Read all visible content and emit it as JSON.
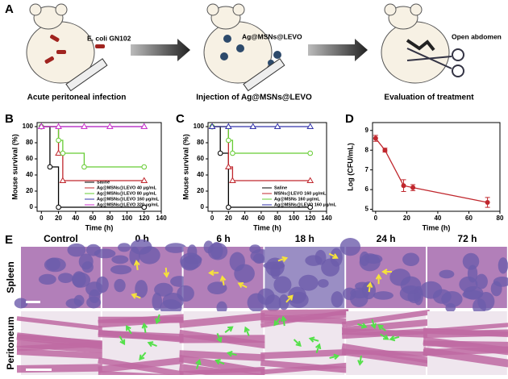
{
  "panel_labels": [
    "A",
    "B",
    "C",
    "D",
    "E"
  ],
  "panel_a": {
    "steps": [
      {
        "label": "E. coli GN102",
        "caption": "Acute peritoneal infection"
      },
      {
        "label": "Ag@MSNs@LEVO",
        "caption": "Injection of Ag@MSNs@LEVO"
      },
      {
        "label": "Open abdomen",
        "caption": "Evaluation of treatment"
      }
    ]
  },
  "chart_data": [
    {
      "type": "step",
      "y_label": "Mouse survival (%)",
      "x_label": "Time (h)",
      "xlim": [
        -5,
        140
      ],
      "ylim": [
        -5,
        105
      ],
      "xticks": [
        0,
        20,
        40,
        60,
        80,
        100,
        120,
        140
      ],
      "yticks": [
        0,
        20,
        40,
        60,
        80,
        100
      ],
      "series": [
        {
          "name": "Saline",
          "color": "#000000",
          "marker": "circle",
          "x": [
            0,
            10,
            20,
            120
          ],
          "values": [
            100,
            50,
            0,
            0
          ]
        },
        {
          "name": "Ag@MSNs@LEVO 40 μg/mL",
          "color": "#c0272d",
          "marker": "triangle",
          "x": [
            0,
            20,
            25,
            120
          ],
          "values": [
            100,
            67,
            33,
            33
          ]
        },
        {
          "name": "Ag@MSNs@LEVO 80 μg/mL",
          "color": "#66cc33",
          "marker": "circle",
          "x": [
            0,
            20,
            25,
            50,
            120
          ],
          "values": [
            100,
            83,
            67,
            50,
            50
          ]
        },
        {
          "name": "Ag@MSNs@LEVO 160 μg/mL",
          "color": "#3333aa",
          "marker": "triangle",
          "x": [
            0,
            120
          ],
          "values": [
            100,
            100
          ]
        },
        {
          "name": "Ag@MSNs@LEVO 320 μg/mL",
          "color": "#cc33cc",
          "marker": "triangle",
          "x": [
            0,
            20,
            50,
            80,
            120
          ],
          "values": [
            100,
            100,
            100,
            100,
            100
          ]
        }
      ]
    },
    {
      "type": "step",
      "y_label": "Mouse survival (%)",
      "x_label": "Time (h)",
      "xlim": [
        -5,
        140
      ],
      "ylim": [
        -5,
        105
      ],
      "xticks": [
        0,
        20,
        40,
        60,
        80,
        100,
        120,
        140
      ],
      "yticks": [
        0,
        20,
        40,
        60,
        80,
        100
      ],
      "series": [
        {
          "name": "Saline",
          "color": "#000000",
          "marker": "circle",
          "x": [
            0,
            10,
            20,
            120
          ],
          "values": [
            100,
            67,
            0,
            0
          ]
        },
        {
          "name": "MSNs@LEVO 160 μg/mL",
          "color": "#c0272d",
          "marker": "triangle",
          "x": [
            0,
            20,
            25,
            120
          ],
          "values": [
            100,
            50,
            33,
            33
          ]
        },
        {
          "name": "Ag@MSNs 160 μg/mL",
          "color": "#66cc33",
          "marker": "circle",
          "x": [
            0,
            20,
            25,
            120
          ],
          "values": [
            100,
            83,
            67,
            67
          ]
        },
        {
          "name": "Ag@MSNs@LEVO 160 μg/mL",
          "color": "#3333aa",
          "marker": "triangle",
          "x": [
            0,
            20,
            50,
            80,
            120
          ],
          "values": [
            100,
            100,
            100,
            100,
            100
          ]
        }
      ]
    },
    {
      "type": "errorline",
      "y_label": "Log (CFU/mL)",
      "x_label": "Time (h)",
      "xlim": [
        -2,
        80
      ],
      "ylim": [
        4.9,
        9.4
      ],
      "xticks": [
        0,
        20,
        40,
        60,
        80
      ],
      "yticks": [
        5,
        6,
        7,
        8,
        9
      ],
      "series": [
        {
          "color": "#c0272d",
          "x": [
            0,
            6,
            18,
            24,
            72
          ],
          "values": [
            8.6,
            8.0,
            6.2,
            6.1,
            5.35
          ],
          "errors": [
            0.15,
            0.1,
            0.3,
            0.15,
            0.25
          ]
        }
      ]
    }
  ],
  "panel_e": {
    "columns": [
      "Control",
      "0 h",
      "6 h",
      "18 h",
      "24 h",
      "72 h"
    ],
    "rows": [
      "Spleen",
      "Peritoneum"
    ]
  }
}
